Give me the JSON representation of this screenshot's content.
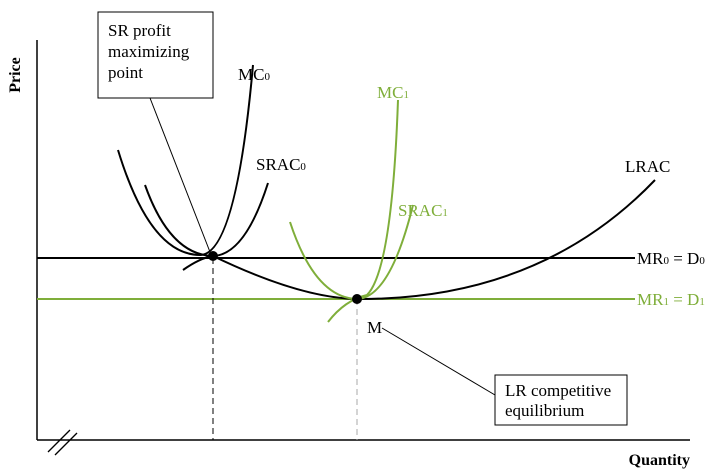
{
  "axes": {
    "y_label": "Price",
    "x_label": "Quantity"
  },
  "curves": [
    {
      "label": "MC",
      "subscript": "0"
    },
    {
      "label": "SRAC",
      "subscript": "0"
    },
    {
      "label": "LRAC"
    },
    {
      "label": "MC",
      "subscript": "1"
    },
    {
      "label": "SRAC",
      "subscript": "1"
    }
  ],
  "lines": [
    {
      "parts": [
        "MR",
        "0",
        " = D",
        "0"
      ]
    },
    {
      "parts": [
        "MR",
        "1",
        " = D",
        "1"
      ]
    }
  ],
  "point_label": "M",
  "annotations": [
    {
      "lines": [
        "SR profit",
        "maximizing",
        "point"
      ]
    },
    {
      "lines": [
        "LR competitive",
        "equilibrium"
      ]
    }
  ]
}
